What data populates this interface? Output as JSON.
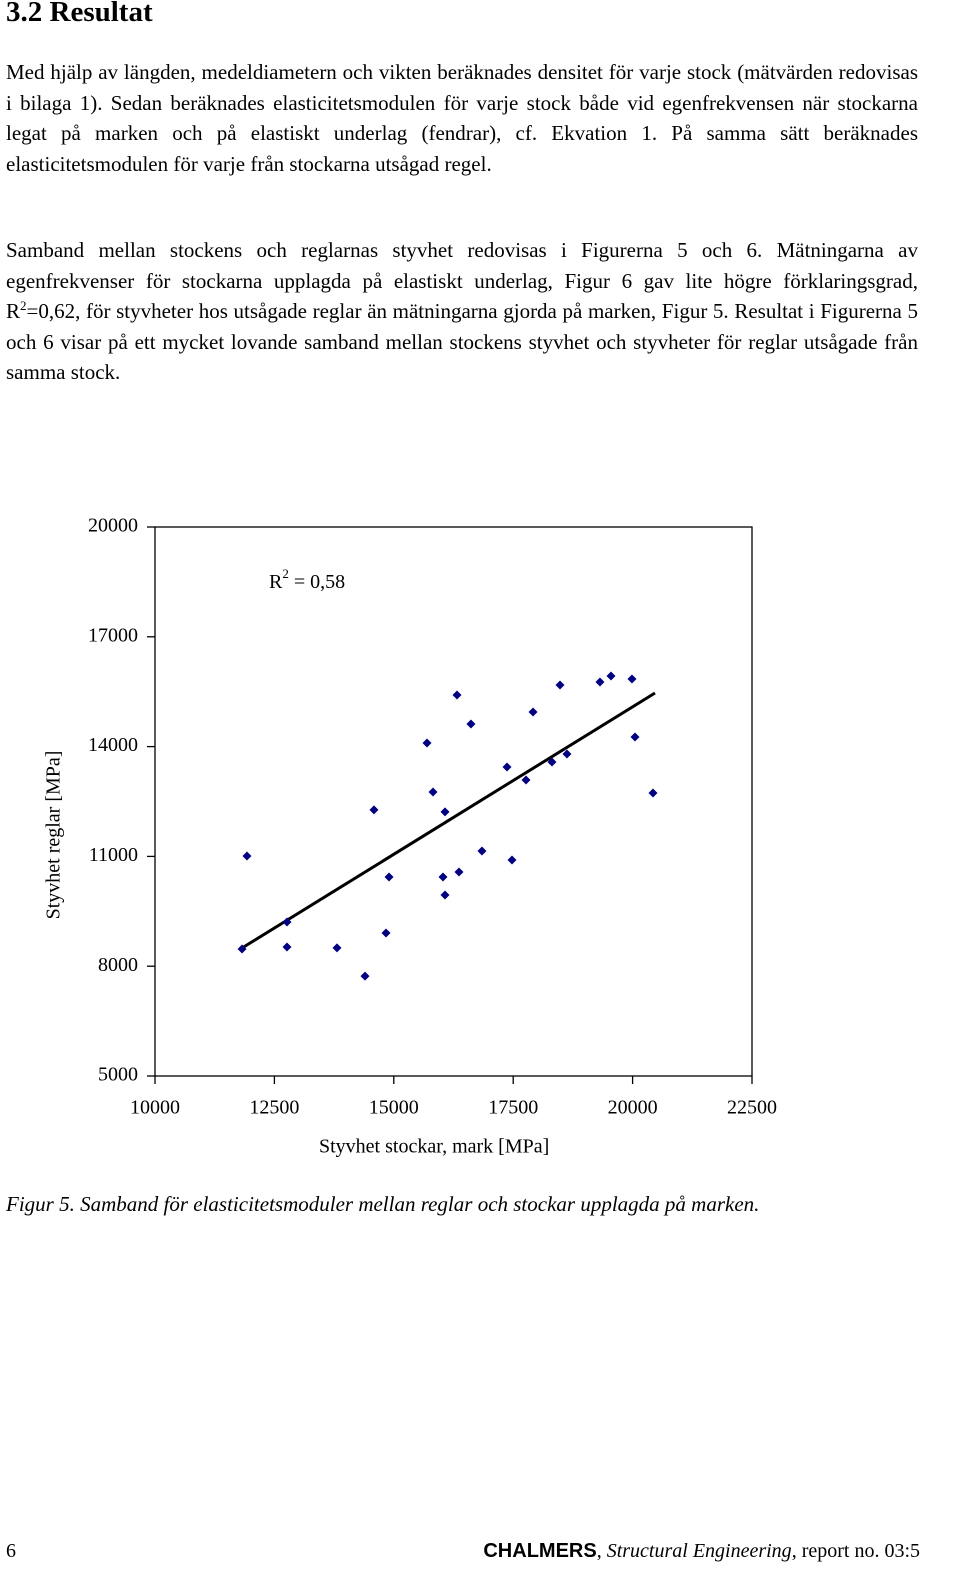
{
  "heading": "3.2 Resultat",
  "paragraphs": [
    [
      "Med hjälp av längden, medeldiametern och vikten beräknades densitet för varje stock (mätvärden redovisas i bilaga 1). Sedan beräknades elasticitetsmodulen för varje stock både vid egenfrekvensen när stockarna legat på marken och på elastiskt underlag (fendrar), cf. Ekvation 1. På samma sätt beräknades elasticitetsmodulen för varje från stockarna utsågad regel."
    ],
    [
      "Samband mellan stockens och reglarnas styvhet redovisas i Figurerna 5 och 6. Mätningarna av egenfrekvenser för stockarna upplagda på elastiskt underlag, Figur 6 gav lite högre förklaringsgrad, R",
      "2",
      "=0,62, för styvheter hos utsågade reglar än mätningarna gjorda på marken, Figur 5. Resultat i Figurerna 5 och 6 visar på ett mycket lovande samband mellan stockens styvhet och styvheter för reglar utsågade från samma stock."
    ]
  ],
  "chart_data": {
    "type": "scatter",
    "x_label": "Styvhet stockar, mark [MPa]",
    "y_label": "Styvhet reglar [MPa]",
    "annotation": [
      "R",
      "2",
      " = 0,58"
    ],
    "color": "#000080",
    "x": [
      11822,
      11926,
      12764,
      12764,
      13811,
      14397,
      14585,
      14837,
      14900,
      15695,
      15821,
      16030,
      16072,
      16072,
      16323,
      16365,
      16616,
      16846,
      17370,
      17475,
      17768,
      17915,
      18312,
      18480,
      18626,
      19317,
      19548,
      19987,
      20050,
      20427
    ],
    "y": [
      8470,
      11011,
      9208,
      8525,
      8500,
      7730,
      12270,
      8907,
      10437,
      14098,
      12760,
      10437,
      12215,
      9945,
      15410,
      10574,
      14617,
      11148,
      13443,
      10902,
      13087,
      14945,
      13579,
      15683,
      13798,
      15765,
      15929,
      15847,
      14262,
      12732
    ],
    "trendline": {
      "x": [
        11822,
        20469
      ],
      "y": [
        8497,
        15464
      ],
      "color": "#000000"
    },
    "xlim": [
      10000,
      22500
    ],
    "ylim": [
      5000,
      20000
    ],
    "xticks": [
      10000,
      12500,
      15000,
      17500,
      20000,
      22500
    ],
    "yticks": [
      5000,
      8000,
      11000,
      14000,
      17000,
      20000
    ]
  },
  "caption": "Figur 5. Samband för elasticitetsmoduler mellan reglar och stockar upplagda på marken.",
  "footer": {
    "page": "6",
    "org": "CHALMERS",
    "sep": ", ",
    "series": "Structural Engineering",
    "report": ", report no. 03:5"
  }
}
